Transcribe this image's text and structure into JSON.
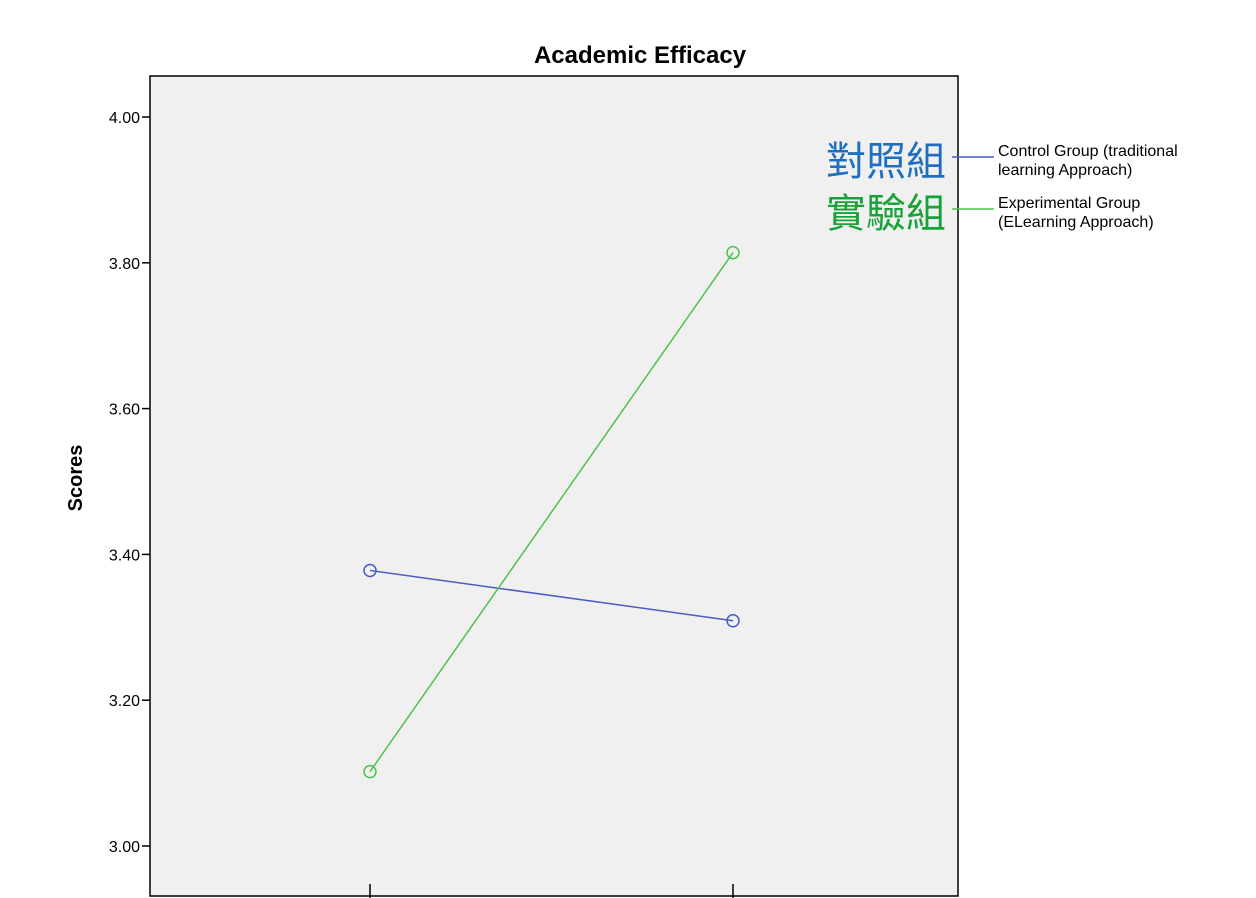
{
  "chart_data": {
    "type": "line",
    "title": "Academic Efficacy",
    "xlabel": "",
    "ylabel": "Scores",
    "ylim": [
      3.0,
      4.0
    ],
    "yticks": [
      "3.00",
      "3.20",
      "3.40",
      "3.60",
      "3.80",
      "4.00"
    ],
    "x_count": 2,
    "grid": false,
    "legend_position": "right",
    "series": [
      {
        "name_lines": [
          "Control Group (traditional",
          "learning Approach)"
        ],
        "annotation": "對照組",
        "color": "#4a5cc5",
        "annotation_color": "#1f6fc0",
        "values": [
          3.378,
          3.309
        ]
      },
      {
        "name_lines": [
          "Experimental Group",
          "(ELearning Approach)"
        ],
        "annotation": "實驗組",
        "color": "#4ec24e",
        "annotation_color": "#1aa23a",
        "values": [
          3.102,
          3.814
        ]
      }
    ]
  }
}
